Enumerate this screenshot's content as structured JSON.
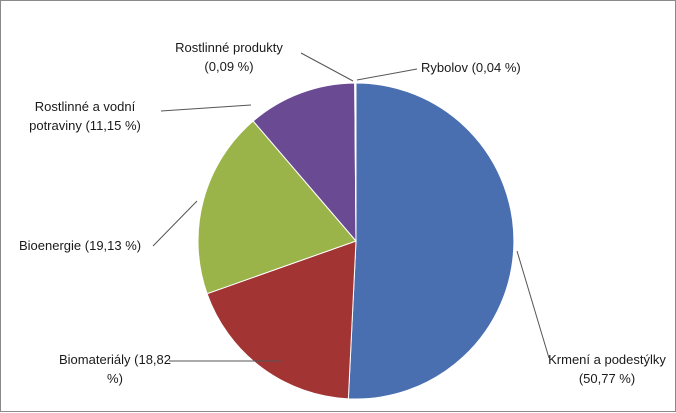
{
  "chart_data": {
    "type": "pie",
    "title": "",
    "slices": [
      {
        "name": "Krmení a podestýlky",
        "value": 50.77,
        "label_lines": [
          "Krmení a podestýlky",
          "(50,77 %)"
        ],
        "color": "#4a6fb0"
      },
      {
        "name": "Biomateriály",
        "value": 18.82,
        "label_lines": [
          "Biomateriály (18,82",
          "%)"
        ],
        "color": "#a23434"
      },
      {
        "name": "Bioenergie",
        "value": 19.13,
        "label_lines": [
          "Bioenergie (19,13 %)"
        ],
        "color": "#9bb44a"
      },
      {
        "name": "Rostlinné a vodní potraviny",
        "value": 11.15,
        "label_lines": [
          "Rostlinné a vodní",
          "potraviny (11,15 %)"
        ],
        "color": "#6a4a92"
      },
      {
        "name": "Rostlinné produkty",
        "value": 0.09,
        "label_lines": [
          "Rostlinné produkty",
          "(0,09 %)"
        ],
        "color": "#3fa3c4"
      },
      {
        "name": "Rybolov",
        "value": 0.04,
        "label_lines": [
          "Rybolov (0,04 %)"
        ],
        "color": "#e08a2c"
      }
    ]
  }
}
